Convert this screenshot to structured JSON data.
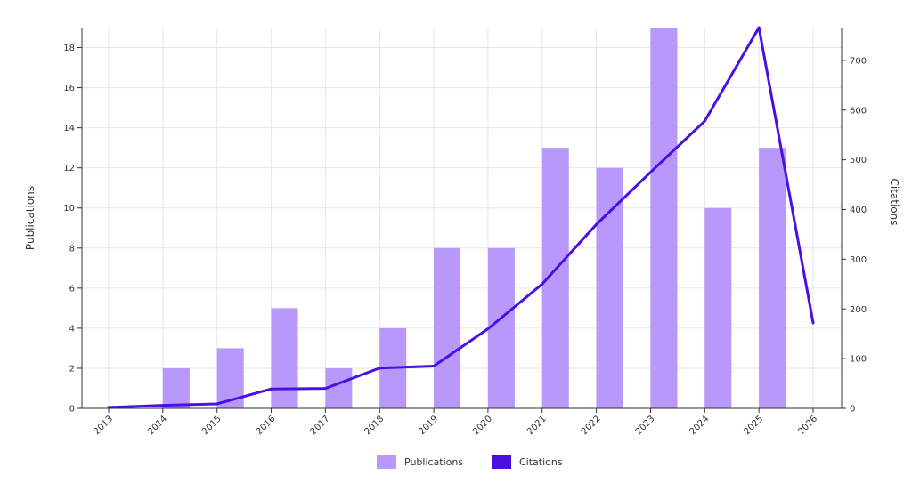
{
  "chart_data": {
    "type": "bar",
    "categories": [
      "2013",
      "2014",
      "2015",
      "2016",
      "2017",
      "2018",
      "2019",
      "2020",
      "2021",
      "2022",
      "2023",
      "2024",
      "2025",
      "2026"
    ],
    "series": [
      {
        "name": "Publications",
        "type": "bar",
        "axis": "left",
        "color": "#b899fb",
        "values": [
          0,
          2,
          3,
          5,
          2,
          4,
          8,
          8,
          13,
          12,
          19,
          10,
          13,
          0
        ]
      },
      {
        "name": "Citations",
        "type": "line",
        "axis": "right",
        "color": "#4b0fe3",
        "values": [
          2,
          6,
          9,
          39,
          40,
          81,
          85,
          160,
          250,
          370,
          475,
          578,
          766,
          172
        ]
      }
    ],
    "ylabel_left": "Publications",
    "ylabel_right": "Citations",
    "ylim_left": [
      0,
      19
    ],
    "ylim_right": [
      0,
      766
    ],
    "yticks_left": [
      0,
      2,
      4,
      6,
      8,
      10,
      12,
      14,
      16,
      18
    ],
    "yticks_right": [
      0,
      100,
      200,
      300,
      400,
      500,
      600,
      700
    ],
    "grid": true,
    "legend_position": "bottom-center"
  }
}
